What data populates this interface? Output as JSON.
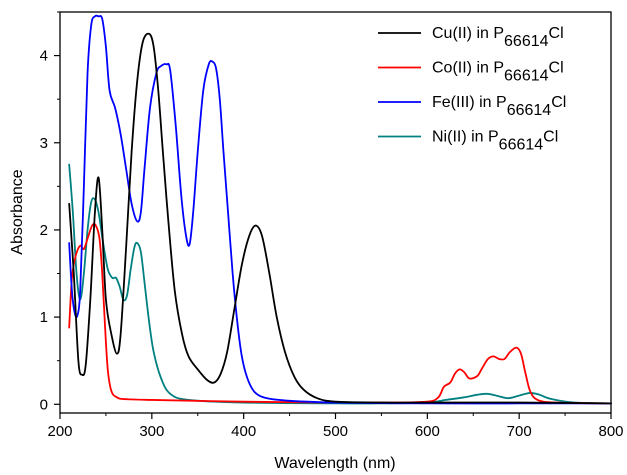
{
  "chart_data": {
    "type": "line",
    "xlabel": "Wavelength (nm)",
    "ylabel": "Absorbance",
    "xlim": [
      200,
      800
    ],
    "ylim": [
      -0.1,
      4.5
    ],
    "xticks": [
      200,
      300,
      400,
      500,
      600,
      700,
      800
    ],
    "yticks": [
      0,
      1,
      2,
      3,
      4
    ],
    "grid": false,
    "legend_position": "top-right",
    "series": [
      {
        "name": "Cu(II) in P66614Cl",
        "legend": {
          "prefix": "Cu(II) in P",
          "subscript": "66614",
          "suffix": "Cl"
        },
        "color": "#000000",
        "points": [
          [
            210,
            2.3
          ],
          [
            215,
            1.5
          ],
          [
            220,
            0.5
          ],
          [
            224,
            0.34
          ],
          [
            228,
            0.45
          ],
          [
            233,
            1.2
          ],
          [
            238,
            2.2
          ],
          [
            242,
            2.6
          ],
          [
            246,
            2.0
          ],
          [
            250,
            1.2
          ],
          [
            256,
            0.8
          ],
          [
            262,
            0.58
          ],
          [
            266,
            0.8
          ],
          [
            272,
            1.8
          ],
          [
            278,
            2.9
          ],
          [
            284,
            3.7
          ],
          [
            290,
            4.15
          ],
          [
            297,
            4.25
          ],
          [
            302,
            4.1
          ],
          [
            307,
            3.6
          ],
          [
            312,
            2.9
          ],
          [
            318,
            2.1
          ],
          [
            325,
            1.3
          ],
          [
            333,
            0.8
          ],
          [
            340,
            0.55
          ],
          [
            350,
            0.4
          ],
          [
            360,
            0.28
          ],
          [
            368,
            0.25
          ],
          [
            375,
            0.35
          ],
          [
            382,
            0.6
          ],
          [
            390,
            1.1
          ],
          [
            398,
            1.6
          ],
          [
            406,
            1.93
          ],
          [
            413,
            2.05
          ],
          [
            420,
            1.93
          ],
          [
            428,
            1.5
          ],
          [
            436,
            1.0
          ],
          [
            445,
            0.6
          ],
          [
            455,
            0.32
          ],
          [
            465,
            0.17
          ],
          [
            480,
            0.07
          ],
          [
            500,
            0.03
          ],
          [
            550,
            0.02
          ],
          [
            600,
            0.02
          ],
          [
            700,
            0.02
          ],
          [
            800,
            0.01
          ]
        ]
      },
      {
        "name": "Co(II) in P66614Cl",
        "legend": {
          "prefix": "Co(II) in P",
          "subscript": "66614",
          "suffix": "Cl"
        },
        "color": "#ff0000",
        "points": [
          [
            210,
            0.88
          ],
          [
            213,
            1.45
          ],
          [
            217,
            1.7
          ],
          [
            222,
            1.82
          ],
          [
            226,
            1.78
          ],
          [
            230,
            1.9
          ],
          [
            235,
            2.05
          ],
          [
            239,
            2.05
          ],
          [
            243,
            1.9
          ],
          [
            246,
            1.5
          ],
          [
            249,
            0.9
          ],
          [
            252,
            0.4
          ],
          [
            256,
            0.15
          ],
          [
            262,
            0.08
          ],
          [
            270,
            0.06
          ],
          [
            300,
            0.05
          ],
          [
            400,
            0.03
          ],
          [
            500,
            0.02
          ],
          [
            560,
            0.02
          ],
          [
            600,
            0.03
          ],
          [
            612,
            0.08
          ],
          [
            618,
            0.2
          ],
          [
            625,
            0.25
          ],
          [
            630,
            0.35
          ],
          [
            635,
            0.4
          ],
          [
            640,
            0.37
          ],
          [
            645,
            0.3
          ],
          [
            650,
            0.3
          ],
          [
            655,
            0.33
          ],
          [
            660,
            0.42
          ],
          [
            666,
            0.52
          ],
          [
            672,
            0.55
          ],
          [
            678,
            0.52
          ],
          [
            684,
            0.52
          ],
          [
            690,
            0.6
          ],
          [
            697,
            0.65
          ],
          [
            702,
            0.58
          ],
          [
            707,
            0.35
          ],
          [
            712,
            0.15
          ],
          [
            720,
            0.05
          ],
          [
            740,
            0.02
          ],
          [
            800,
            0.01
          ]
        ]
      },
      {
        "name": "Fe(III) in P66614Cl",
        "legend": {
          "prefix": "Fe(III) in P",
          "subscript": "66614",
          "suffix": "Cl"
        },
        "color": "#0000ff",
        "points": [
          [
            210,
            1.85
          ],
          [
            213,
            1.3
          ],
          [
            216,
            1.05
          ],
          [
            219,
            1.02
          ],
          [
            222,
            1.3
          ],
          [
            226,
            2.5
          ],
          [
            230,
            3.8
          ],
          [
            234,
            4.35
          ],
          [
            238,
            4.45
          ],
          [
            242,
            4.45
          ],
          [
            246,
            4.42
          ],
          [
            250,
            4.1
          ],
          [
            254,
            3.6
          ],
          [
            260,
            3.4
          ],
          [
            266,
            3.1
          ],
          [
            272,
            2.7
          ],
          [
            278,
            2.3
          ],
          [
            284,
            2.1
          ],
          [
            288,
            2.2
          ],
          [
            292,
            2.7
          ],
          [
            298,
            3.4
          ],
          [
            305,
            3.8
          ],
          [
            310,
            3.88
          ],
          [
            316,
            3.9
          ],
          [
            320,
            3.83
          ],
          [
            326,
            3.2
          ],
          [
            332,
            2.4
          ],
          [
            337,
            1.95
          ],
          [
            341,
            1.83
          ],
          [
            345,
            2.2
          ],
          [
            350,
            2.9
          ],
          [
            356,
            3.6
          ],
          [
            362,
            3.9
          ],
          [
            366,
            3.93
          ],
          [
            370,
            3.85
          ],
          [
            374,
            3.5
          ],
          [
            378,
            2.9
          ],
          [
            383,
            2.2
          ],
          [
            388,
            1.5
          ],
          [
            393,
            0.95
          ],
          [
            398,
            0.55
          ],
          [
            404,
            0.3
          ],
          [
            412,
            0.14
          ],
          [
            425,
            0.07
          ],
          [
            450,
            0.04
          ],
          [
            500,
            0.02
          ],
          [
            600,
            0.01
          ],
          [
            700,
            0.01
          ],
          [
            800,
            0.01
          ]
        ]
      },
      {
        "name": "Ni(II) in P66614Cl",
        "legend": {
          "prefix": "Ni(II) in P",
          "subscript": "66614",
          "suffix": "Cl"
        },
        "color": "#008080",
        "points": [
          [
            210,
            2.75
          ],
          [
            214,
            2.2
          ],
          [
            218,
            1.5
          ],
          [
            222,
            1.2
          ],
          [
            226,
            1.5
          ],
          [
            230,
            2.0
          ],
          [
            234,
            2.32
          ],
          [
            238,
            2.35
          ],
          [
            242,
            2.2
          ],
          [
            247,
            1.85
          ],
          [
            252,
            1.55
          ],
          [
            257,
            1.45
          ],
          [
            261,
            1.45
          ],
          [
            265,
            1.35
          ],
          [
            269,
            1.2
          ],
          [
            273,
            1.25
          ],
          [
            277,
            1.55
          ],
          [
            281,
            1.8
          ],
          [
            284,
            1.85
          ],
          [
            288,
            1.75
          ],
          [
            292,
            1.4
          ],
          [
            297,
            0.95
          ],
          [
            302,
            0.6
          ],
          [
            310,
            0.3
          ],
          [
            320,
            0.12
          ],
          [
            340,
            0.05
          ],
          [
            400,
            0.02
          ],
          [
            500,
            0.01
          ],
          [
            550,
            0.01
          ],
          [
            600,
            0.02
          ],
          [
            620,
            0.05
          ],
          [
            640,
            0.08
          ],
          [
            655,
            0.11
          ],
          [
            665,
            0.12
          ],
          [
            675,
            0.1
          ],
          [
            688,
            0.07
          ],
          [
            700,
            0.1
          ],
          [
            712,
            0.13
          ],
          [
            722,
            0.11
          ],
          [
            735,
            0.06
          ],
          [
            760,
            0.02
          ],
          [
            800,
            0.01
          ]
        ]
      }
    ]
  }
}
